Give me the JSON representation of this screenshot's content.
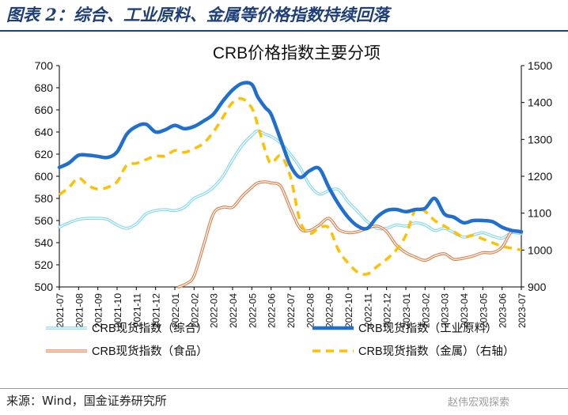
{
  "figure": {
    "title": "图表 2：综合、工业原料、金属等价格指数持续回落",
    "source": "来源：Wind，国金证券研究所",
    "watermark": "赵伟宏观探索"
  },
  "chart_data": {
    "type": "line",
    "title": "CRB价格指数主要分项",
    "categories": [
      "2021-07",
      "2021-08",
      "2021-09",
      "2021-10",
      "2021-11",
      "2021-12",
      "2022-01",
      "2022-02",
      "2022-03",
      "2022-04",
      "2022-05",
      "2022-06",
      "2022-07",
      "2022-08",
      "2022-09",
      "2022-10",
      "2022-11",
      "2022-12",
      "2023-01",
      "2023-02",
      "2023-03",
      "2023-04",
      "2023-05",
      "2023-06",
      "2023-07"
    ],
    "y_left": {
      "min": 500,
      "max": 700,
      "ticks": [
        500,
        520,
        540,
        560,
        580,
        600,
        620,
        640,
        660,
        680,
        700
      ]
    },
    "y_right": {
      "min": 900,
      "max": 1500,
      "ticks": [
        900,
        1000,
        1100,
        1200,
        1300,
        1400,
        1500
      ]
    },
    "legend_position": "bottom",
    "grid": false,
    "series": [
      {
        "name": "CRB现货指数（综合）",
        "axis": "left",
        "color": "#7fd8ee",
        "style": "double",
        "x": [
          0,
          0.5,
          1,
          1.5,
          2,
          2.5,
          3,
          3.5,
          4,
          4.5,
          5,
          5.5,
          6,
          6.5,
          7,
          7.5,
          8,
          8.5,
          9,
          9.5,
          10,
          10.3,
          10.7,
          11,
          11.5,
          12,
          12.5,
          13,
          13.5,
          14,
          14.5,
          15,
          15.5,
          16,
          16.5,
          17,
          17.5,
          18,
          18.5,
          19,
          19.5,
          20,
          20.5,
          21,
          21.5,
          22,
          22.5,
          23,
          23.5,
          24
        ],
        "values": [
          554,
          558,
          561,
          562,
          562,
          561,
          556,
          553,
          557,
          566,
          569,
          570,
          569,
          572,
          580,
          584,
          590,
          600,
          615,
          628,
          637,
          641,
          638,
          636,
          630,
          620,
          608,
          592,
          584,
          587,
          588,
          577,
          568,
          559,
          553,
          553,
          556,
          555,
          558,
          556,
          551,
          553,
          549,
          545,
          547,
          549,
          546,
          544,
          549,
          548
        ]
      },
      {
        "name": "CRB现货指数（工业原料）",
        "axis": "left",
        "color": "#1f6fd1",
        "style": "thick",
        "x": [
          0,
          0.5,
          1,
          1.5,
          2,
          2.5,
          3,
          3.5,
          4,
          4.5,
          5,
          5.5,
          6,
          6.5,
          7,
          7.5,
          8,
          8.5,
          9,
          9.5,
          10,
          10.3,
          10.7,
          11,
          11.5,
          12,
          12.5,
          13,
          13.5,
          14,
          14.5,
          15,
          15.5,
          16,
          16.5,
          17,
          17.5,
          18,
          18.5,
          19,
          19.5,
          20,
          20.5,
          21,
          21.5,
          22,
          22.5,
          23,
          23.5,
          24
        ],
        "values": [
          608,
          612,
          619,
          619,
          618,
          617,
          622,
          638,
          645,
          647,
          640,
          642,
          646,
          643,
          645,
          650,
          656,
          668,
          678,
          684,
          683,
          672,
          662,
          656,
          633,
          610,
          599,
          605,
          607,
          590,
          575,
          563,
          555,
          553,
          563,
          569,
          570,
          568,
          570,
          571,
          580,
          566,
          563,
          558,
          560,
          560,
          559,
          554,
          551,
          550
        ]
      },
      {
        "name": "CRB现货指数（食品）",
        "axis": "left",
        "color": "#e07c46",
        "style": "double",
        "x": [
          6.2,
          6.6,
          7,
          7.5,
          8,
          8.5,
          9,
          9.5,
          10,
          10.3,
          10.7,
          11,
          11.5,
          12,
          12.5,
          13,
          13.5,
          14,
          14.5,
          15,
          15.5,
          16,
          16.5,
          17,
          17.5,
          18,
          18.5,
          19,
          19.5,
          20,
          20.5,
          21,
          21.5,
          22,
          22.5,
          23,
          23.5,
          24
        ],
        "values": [
          500,
          503,
          510,
          538,
          566,
          572,
          572,
          582,
          590,
          594,
          595,
          594,
          591,
          571,
          553,
          551,
          556,
          562,
          552,
          549,
          550,
          553,
          555,
          550,
          538,
          531,
          527,
          524,
          528,
          530,
          525,
          526,
          528,
          531,
          531,
          536,
          550,
          549
        ]
      },
      {
        "name": "CRB现货指数（金属）（右轴）",
        "axis": "right",
        "color": "#ffc000",
        "style": "dashed",
        "x": [
          0,
          0.5,
          1,
          1.5,
          2,
          2.5,
          3,
          3.5,
          4,
          4.5,
          5,
          5.5,
          6,
          6.5,
          7,
          7.5,
          8,
          8.5,
          9,
          9.5,
          10,
          10.3,
          10.7,
          11,
          11.5,
          12,
          12.5,
          13,
          13.5,
          14,
          14.5,
          15,
          15.5,
          16,
          16.5,
          17,
          17.5,
          18,
          18.5,
          19,
          19.5,
          20,
          20.5,
          21,
          21.5,
          22,
          22.5,
          23,
          23.5,
          24
        ],
        "values": [
          1150,
          1170,
          1195,
          1175,
          1165,
          1170,
          1185,
          1230,
          1235,
          1245,
          1255,
          1255,
          1270,
          1265,
          1275,
          1290,
          1320,
          1360,
          1400,
          1410,
          1385,
          1340,
          1270,
          1235,
          1255,
          1200,
          1080,
          1045,
          1060,
          1060,
          1000,
          965,
          940,
          935,
          955,
          975,
          1000,
          1040,
          1110,
          1105,
          1080,
          1065,
          1050,
          1035,
          1040,
          1030,
          1020,
          1010,
          1005,
          1000
        ]
      }
    ]
  }
}
